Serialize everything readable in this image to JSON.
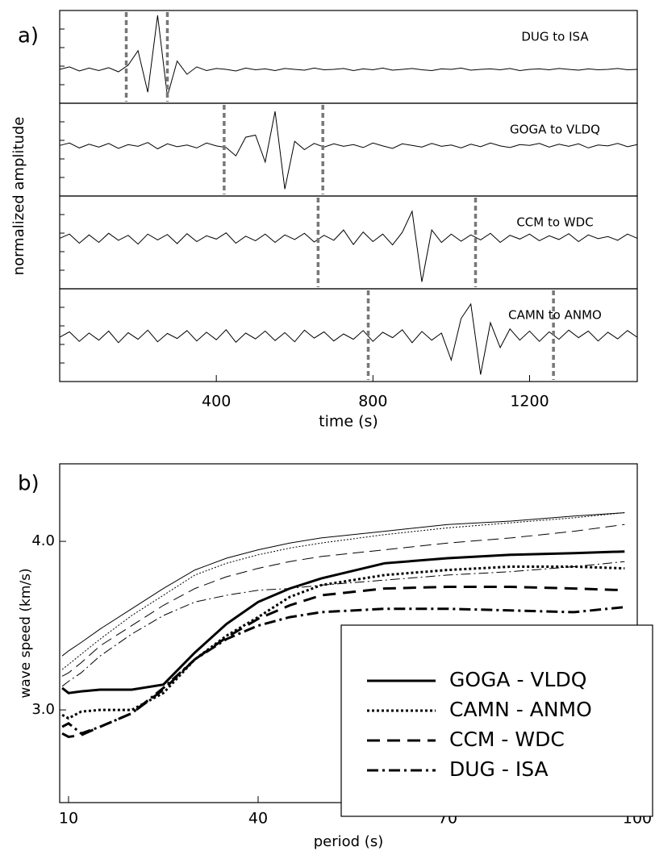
{
  "chart_data": [
    {
      "type": "traces",
      "panel_label": "a)",
      "ylabel": "normalized amplitude",
      "xlabel": "time (s)",
      "xlim": [
        0,
        1475
      ],
      "xticks": [
        400,
        800,
        1200
      ],
      "ylim": [
        -1,
        1
      ],
      "window_color": "#777777",
      "x": [
        0,
        25,
        50,
        75,
        100,
        125,
        150,
        175,
        200,
        225,
        250,
        275,
        300,
        325,
        350,
        375,
        400,
        425,
        450,
        475,
        500,
        525,
        550,
        575,
        600,
        625,
        650,
        675,
        700,
        725,
        750,
        775,
        800,
        825,
        850,
        875,
        900,
        925,
        950,
        975,
        1000,
        1025,
        1050,
        1075,
        1100,
        1125,
        1150,
        1175,
        1200,
        1225,
        1250,
        1275,
        1300,
        1325,
        1350,
        1375,
        1400,
        1425,
        1450,
        1475
      ],
      "series": [
        {
          "name": "DUG to ISA",
          "color": "#000000",
          "window": [
            170,
            275
          ],
          "values": [
            -0.3,
            -0.24,
            -0.34,
            -0.27,
            -0.33,
            -0.26,
            -0.36,
            -0.2,
            0.15,
            -0.85,
            1.0,
            -0.95,
            -0.1,
            -0.42,
            -0.24,
            -0.33,
            -0.28,
            -0.3,
            -0.34,
            -0.27,
            -0.31,
            -0.29,
            -0.33,
            -0.28,
            -0.3,
            -0.32,
            -0.27,
            -0.31,
            -0.3,
            -0.28,
            -0.33,
            -0.29,
            -0.31,
            -0.27,
            -0.32,
            -0.3,
            -0.28,
            -0.31,
            -0.33,
            -0.29,
            -0.3,
            -0.27,
            -0.32,
            -0.3,
            -0.29,
            -0.31,
            -0.28,
            -0.33,
            -0.3,
            -0.29,
            -0.31,
            -0.28,
            -0.3,
            -0.32,
            -0.29,
            -0.31,
            -0.3,
            -0.28,
            -0.31,
            -0.3
          ]
        },
        {
          "name": "GOGA to VLDQ",
          "color": "#000000",
          "window": [
            420,
            672
          ],
          "values": [
            0.1,
            0.16,
            0.04,
            0.13,
            0.06,
            0.15,
            0.03,
            0.12,
            0.08,
            0.17,
            0.02,
            0.14,
            0.07,
            0.11,
            0.04,
            0.16,
            0.09,
            0.05,
            -0.15,
            0.3,
            0.35,
            -0.3,
            0.92,
            -0.95,
            0.2,
            0.0,
            0.15,
            0.06,
            0.14,
            0.08,
            0.12,
            0.05,
            0.16,
            0.09,
            0.03,
            0.14,
            0.1,
            0.06,
            0.15,
            0.08,
            0.11,
            0.04,
            0.13,
            0.07,
            0.16,
            0.09,
            0.05,
            0.12,
            0.1,
            0.15,
            0.06,
            0.13,
            0.08,
            0.14,
            0.04,
            0.11,
            0.09,
            0.15,
            0.07,
            0.12
          ]
        },
        {
          "name": "CCM to WDC",
          "color": "#000000",
          "window": [
            660,
            1062
          ],
          "values": [
            0.1,
            0.2,
            -0.02,
            0.18,
            0.0,
            0.22,
            0.05,
            0.17,
            -0.04,
            0.2,
            0.06,
            0.19,
            -0.03,
            0.21,
            0.02,
            0.16,
            0.08,
            0.23,
            -0.02,
            0.15,
            0.04,
            0.2,
            0.0,
            0.18,
            0.07,
            0.22,
            0.01,
            0.17,
            0.05,
            0.3,
            -0.05,
            0.25,
            0.02,
            0.2,
            -0.06,
            0.24,
            0.75,
            -0.95,
            0.3,
            0.0,
            0.2,
            0.03,
            0.18,
            0.06,
            0.22,
            0.0,
            0.17,
            0.08,
            0.2,
            0.04,
            0.16,
            0.07,
            0.21,
            0.02,
            0.18,
            0.09,
            0.14,
            0.05,
            0.2,
            0.1
          ]
        },
        {
          "name": "CAMN to ANMO",
          "color": "#000000",
          "window": [
            788,
            1261
          ],
          "values": [
            -0.05,
            0.08,
            -0.15,
            0.05,
            -0.12,
            0.1,
            -0.18,
            0.06,
            -0.1,
            0.12,
            -0.16,
            0.04,
            -0.08,
            0.11,
            -0.14,
            0.07,
            -0.11,
            0.13,
            -0.17,
            0.05,
            -0.09,
            0.1,
            -0.13,
            0.06,
            -0.16,
            0.12,
            -0.07,
            0.08,
            -0.14,
            0.03,
            -0.1,
            0.11,
            -0.15,
            0.07,
            -0.06,
            0.13,
            -0.18,
            0.09,
            -0.12,
            0.05,
            -0.6,
            0.4,
            0.75,
            -0.95,
            0.3,
            -0.3,
            0.15,
            -0.12,
            0.1,
            -0.15,
            0.08,
            -0.1,
            0.12,
            -0.06,
            0.1,
            -0.14,
            0.07,
            -0.09,
            0.11,
            -0.05
          ]
        }
      ]
    },
    {
      "type": "line",
      "panel_label": "b)",
      "ylabel": "wave speed (km/s)",
      "xlabel": "period (s)",
      "xlim": [
        8.6,
        100
      ],
      "xticks": [
        10,
        40,
        70,
        100
      ],
      "ylim": [
        2.45,
        4.46
      ],
      "yticks": [
        {
          "value": 3,
          "label": "3.0"
        },
        {
          "value": 4,
          "label": "4.0"
        }
      ],
      "legend": "lower right",
      "x": [
        9,
        10,
        12,
        15,
        20,
        25,
        30,
        35,
        40,
        45,
        50,
        60,
        70,
        80,
        90,
        98
      ],
      "series": [
        {
          "name": "GOGA - VLDQ",
          "color": "#000000",
          "style": "solid",
          "linewidth": 3,
          "values": [
            3.13,
            3.1,
            3.11,
            3.12,
            3.12,
            3.15,
            3.34,
            3.51,
            3.64,
            3.72,
            3.78,
            3.87,
            3.9,
            3.92,
            3.93,
            3.94
          ]
        },
        {
          "name": "CAMN - ANMO",
          "color": "#000000",
          "style": "dotted",
          "linewidth": 3,
          "values": [
            2.97,
            2.95,
            2.99,
            3.0,
            3.0,
            3.1,
            3.3,
            3.44,
            3.55,
            3.67,
            3.74,
            3.8,
            3.83,
            3.85,
            3.85,
            3.84
          ]
        },
        {
          "name": "CCM - WDC",
          "color": "#000000",
          "style": "dashed",
          "linewidth": 3,
          "values": [
            2.86,
            2.84,
            2.85,
            2.9,
            2.98,
            3.12,
            3.3,
            3.43,
            3.54,
            3.62,
            3.68,
            3.72,
            3.73,
            3.73,
            3.72,
            3.71
          ]
        },
        {
          "name": "DUG - ISA",
          "color": "#000000",
          "style": "dashdot",
          "linewidth": 3,
          "values": [
            2.9,
            2.92,
            2.86,
            2.9,
            2.98,
            3.13,
            3.3,
            3.42,
            3.5,
            3.55,
            3.58,
            3.6,
            3.6,
            3.59,
            3.58,
            3.61
          ]
        },
        {
          "color": "#000000",
          "style": "solid",
          "linewidth": 1,
          "values": [
            3.32,
            3.35,
            3.4,
            3.48,
            3.6,
            3.72,
            3.83,
            3.9,
            3.95,
            3.99,
            4.02,
            4.06,
            4.1,
            4.12,
            4.15,
            4.17
          ]
        },
        {
          "color": "#000000",
          "style": "dotted",
          "linewidth": 1,
          "values": [
            3.24,
            3.27,
            3.33,
            3.42,
            3.56,
            3.68,
            3.8,
            3.87,
            3.92,
            3.96,
            3.99,
            4.04,
            4.08,
            4.11,
            4.14,
            4.17
          ]
        },
        {
          "color": "#000000",
          "style": "dashed",
          "linewidth": 1,
          "values": [
            3.2,
            3.22,
            3.28,
            3.38,
            3.5,
            3.62,
            3.72,
            3.79,
            3.84,
            3.88,
            3.91,
            3.95,
            3.99,
            4.02,
            4.06,
            4.1
          ]
        },
        {
          "color": "#000000",
          "style": "dashdot",
          "linewidth": 1,
          "values": [
            3.14,
            3.17,
            3.22,
            3.32,
            3.45,
            3.56,
            3.64,
            3.68,
            3.71,
            3.72,
            3.74,
            3.77,
            3.8,
            3.82,
            3.85,
            3.88
          ]
        }
      ]
    }
  ]
}
